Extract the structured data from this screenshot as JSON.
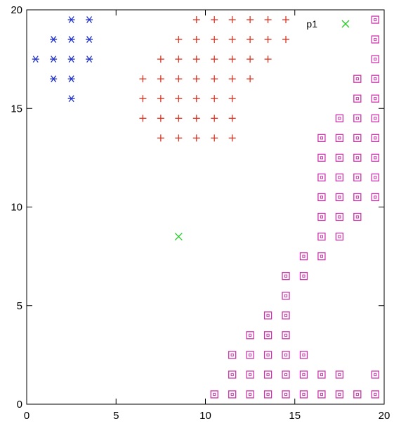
{
  "chart_data": {
    "type": "scatter",
    "xlim": [
      0,
      20
    ],
    "ylim": [
      0,
      20
    ],
    "x_ticks": [
      0,
      5,
      10,
      15,
      20
    ],
    "y_ticks": [
      0,
      5,
      10,
      15,
      20
    ],
    "x_tick_labels": [
      "0",
      "5",
      "10",
      "15",
      "20"
    ],
    "y_tick_labels": [
      "0",
      "5",
      "10",
      "15",
      "20"
    ],
    "grid": false,
    "legend": {
      "position": "top-right"
    },
    "series": [
      {
        "marker": "asterisk",
        "color": "#2233cc",
        "points": [
          [
            2.5,
            19.5
          ],
          [
            3.5,
            19.5
          ],
          [
            1.5,
            18.5
          ],
          [
            2.5,
            18.5
          ],
          [
            3.5,
            18.5
          ],
          [
            0.5,
            17.5
          ],
          [
            1.5,
            17.5
          ],
          [
            2.5,
            17.5
          ],
          [
            3.5,
            17.5
          ],
          [
            1.5,
            16.5
          ],
          [
            2.5,
            16.5
          ],
          [
            2.5,
            15.5
          ]
        ]
      },
      {
        "marker": "plus",
        "color": "#dd3322",
        "points": [
          [
            9.5,
            19.5
          ],
          [
            10.5,
            19.5
          ],
          [
            11.5,
            19.5
          ],
          [
            12.5,
            19.5
          ],
          [
            13.5,
            19.5
          ],
          [
            14.5,
            19.5
          ],
          [
            8.5,
            18.5
          ],
          [
            9.5,
            18.5
          ],
          [
            10.5,
            18.5
          ],
          [
            11.5,
            18.5
          ],
          [
            12.5,
            18.5
          ],
          [
            13.5,
            18.5
          ],
          [
            14.5,
            18.5
          ],
          [
            7.5,
            17.5
          ],
          [
            8.5,
            17.5
          ],
          [
            9.5,
            17.5
          ],
          [
            10.5,
            17.5
          ],
          [
            11.5,
            17.5
          ],
          [
            12.5,
            17.5
          ],
          [
            13.5,
            17.5
          ],
          [
            6.5,
            16.5
          ],
          [
            7.5,
            16.5
          ],
          [
            8.5,
            16.5
          ],
          [
            9.5,
            16.5
          ],
          [
            10.5,
            16.5
          ],
          [
            11.5,
            16.5
          ],
          [
            12.5,
            16.5
          ],
          [
            6.5,
            15.5
          ],
          [
            7.5,
            15.5
          ],
          [
            8.5,
            15.5
          ],
          [
            9.5,
            15.5
          ],
          [
            10.5,
            15.5
          ],
          [
            11.5,
            15.5
          ],
          [
            6.5,
            14.5
          ],
          [
            7.5,
            14.5
          ],
          [
            8.5,
            14.5
          ],
          [
            9.5,
            14.5
          ],
          [
            10.5,
            14.5
          ],
          [
            11.5,
            14.5
          ],
          [
            7.5,
            13.5
          ],
          [
            8.5,
            13.5
          ],
          [
            9.5,
            13.5
          ],
          [
            10.5,
            13.5
          ],
          [
            11.5,
            13.5
          ]
        ]
      },
      {
        "marker": "square",
        "color": "#cc33aa",
        "points": [
          [
            19.5,
            19.5
          ],
          [
            19.5,
            18.5
          ],
          [
            19.5,
            17.5
          ],
          [
            18.5,
            16.5
          ],
          [
            19.5,
            16.5
          ],
          [
            18.5,
            15.5
          ],
          [
            19.5,
            15.5
          ],
          [
            17.5,
            14.5
          ],
          [
            18.5,
            14.5
          ],
          [
            19.5,
            14.5
          ],
          [
            16.5,
            13.5
          ],
          [
            17.5,
            13.5
          ],
          [
            18.5,
            13.5
          ],
          [
            19.5,
            13.5
          ],
          [
            16.5,
            12.5
          ],
          [
            17.5,
            12.5
          ],
          [
            18.5,
            12.5
          ],
          [
            19.5,
            12.5
          ],
          [
            16.5,
            11.5
          ],
          [
            17.5,
            11.5
          ],
          [
            18.5,
            11.5
          ],
          [
            19.5,
            11.5
          ],
          [
            16.5,
            10.5
          ],
          [
            17.5,
            10.5
          ],
          [
            18.5,
            10.5
          ],
          [
            19.5,
            10.5
          ],
          [
            16.5,
            9.5
          ],
          [
            17.5,
            9.5
          ],
          [
            18.5,
            9.5
          ],
          [
            16.5,
            8.5
          ],
          [
            17.5,
            8.5
          ],
          [
            15.5,
            7.5
          ],
          [
            16.5,
            7.5
          ],
          [
            14.5,
            6.5
          ],
          [
            15.5,
            6.5
          ],
          [
            14.5,
            5.5
          ],
          [
            13.5,
            4.5
          ],
          [
            14.5,
            4.5
          ],
          [
            12.5,
            3.5
          ],
          [
            13.5,
            3.5
          ],
          [
            14.5,
            3.5
          ],
          [
            11.5,
            2.5
          ],
          [
            12.5,
            2.5
          ],
          [
            13.5,
            2.5
          ],
          [
            14.5,
            2.5
          ],
          [
            15.5,
            2.5
          ],
          [
            11.5,
            1.5
          ],
          [
            12.5,
            1.5
          ],
          [
            13.5,
            1.5
          ],
          [
            14.5,
            1.5
          ],
          [
            15.5,
            1.5
          ],
          [
            16.5,
            1.5
          ],
          [
            17.5,
            1.5
          ],
          [
            19.5,
            1.5
          ],
          [
            10.5,
            0.5
          ],
          [
            11.5,
            0.5
          ],
          [
            12.5,
            0.5
          ],
          [
            13.5,
            0.5
          ],
          [
            14.5,
            0.5
          ],
          [
            15.5,
            0.5
          ],
          [
            16.5,
            0.5
          ],
          [
            17.5,
            0.5
          ],
          [
            18.5,
            0.5
          ],
          [
            19.5,
            0.5
          ]
        ]
      },
      {
        "name": "p1",
        "marker": "x",
        "color": "#22cc22",
        "points": [
          [
            8.5,
            8.5
          ]
        ]
      }
    ]
  }
}
